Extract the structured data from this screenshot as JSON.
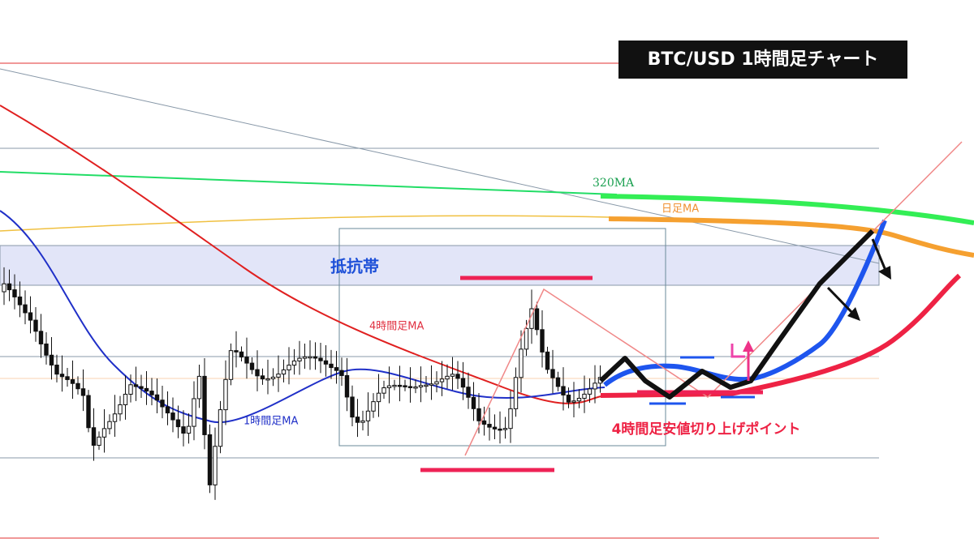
{
  "title": "BTC/USD  1時間足チャート",
  "labels": {
    "ma320": "320MA",
    "daily_ma": "日足MA",
    "resistance": "抵抗帯",
    "ma_4h": "4時間足MA",
    "ma_1h": "1時間足MA",
    "higher_low": "4時間足安値切り上げポイント"
  }
}
